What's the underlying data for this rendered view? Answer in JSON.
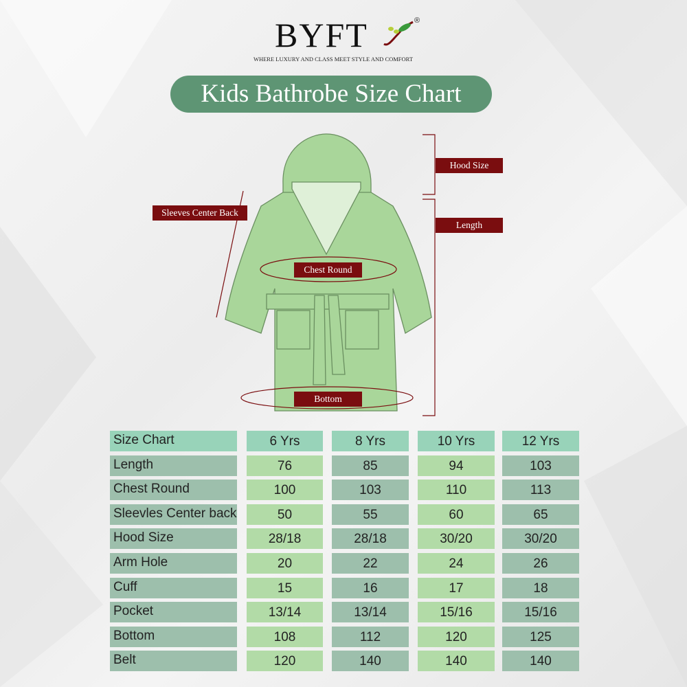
{
  "brand": {
    "name": "BYFT",
    "registered": "®",
    "tagline": "WHERE LUXURY AND CLASS MEET STYLE AND COMFORT",
    "leaf_icon": "leaf-swoosh-icon"
  },
  "title": "Kids Bathrobe Size Chart",
  "diagram_labels": {
    "hood": "Hood Size",
    "length": "Length",
    "sleeves": "Sleeves Center Back",
    "chest": "Chest Round",
    "bottom": "Bottom"
  },
  "colors": {
    "title_bg": "#5e9574",
    "label_bg": "#7a0d0f",
    "robe": "#a9d69a",
    "header": "#98d3b9",
    "light_cell": "#b2dba7",
    "dark_cell": "#9dbfac"
  },
  "table": {
    "headers": [
      "Size Chart",
      "6 Yrs",
      "8 Yrs",
      "10 Yrs",
      "12 Yrs"
    ],
    "rows": [
      [
        "Length",
        "76",
        "85",
        "94",
        "103"
      ],
      [
        "Chest Round",
        "100",
        "103",
        "110",
        "113"
      ],
      [
        "Sleevles Center back",
        "50",
        "55",
        "60",
        "65"
      ],
      [
        "Hood Size",
        "28/18",
        "28/18",
        "30/20",
        "30/20"
      ],
      [
        "Arm Hole",
        "20",
        "22",
        "24",
        "26"
      ],
      [
        "Cuff",
        "15",
        "16",
        "17",
        "18"
      ],
      [
        "Pocket",
        "13/14",
        "13/14",
        "15/16",
        "15/16"
      ],
      [
        "Bottom",
        "108",
        "112",
        "120",
        "125"
      ],
      [
        "Belt",
        "120",
        "140",
        "140",
        "140"
      ]
    ]
  }
}
